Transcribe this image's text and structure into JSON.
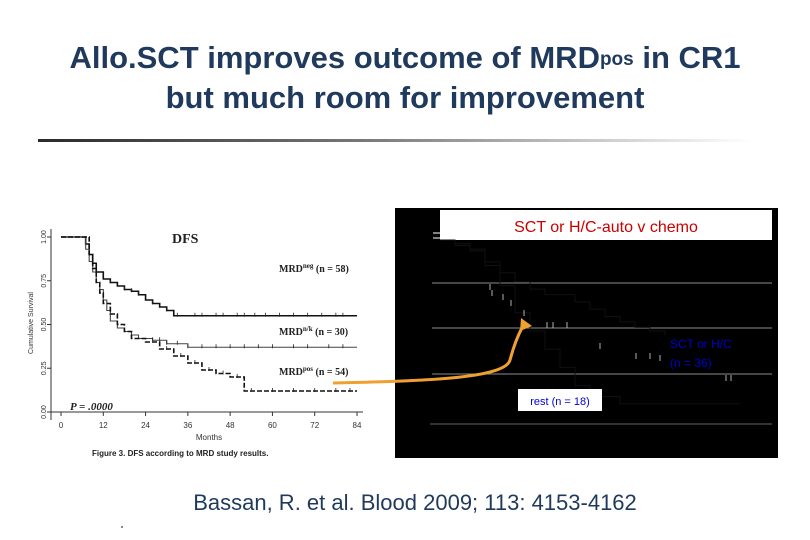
{
  "slide": {
    "title_main": "Allo.SCT improves outcome of MRD",
    "title_sup": "pos",
    "title_after": " in CR1",
    "title_line2": "but much room for improvement",
    "citation": "Bassan, R. et al. Blood 2009; 113: 4153-4162"
  },
  "colors": {
    "title": "#1f3a5c",
    "overlay_text": "#0000cc",
    "arrow": "#f0a030",
    "right_panel_bg": "#000000"
  },
  "chart_data": [
    {
      "type": "line",
      "title": "DFS",
      "xlabel": "Months",
      "ylabel": "Cumulative Survival",
      "xlim": [
        0,
        84
      ],
      "ylim": [
        0,
        1
      ],
      "x_ticks": [
        "0",
        "12",
        "24",
        "36",
        "48",
        "60",
        "72",
        "84"
      ],
      "y_ticks": [
        "0.00",
        "0.25",
        "0.50",
        "0.75",
        "1.00"
      ],
      "caption": "Figure 3. DFS according to MRD study results.",
      "p_value_label": "P = .0000",
      "series": [
        {
          "name": "MRDneg",
          "label_base": "MRD",
          "label_sup": "neg",
          "label_n": "(n = 58)",
          "points": [
            [
              0,
              1.0
            ],
            [
              6,
              1.0
            ],
            [
              7,
              0.96
            ],
            [
              8,
              0.9
            ],
            [
              9,
              0.85
            ],
            [
              10,
              0.8
            ],
            [
              12,
              0.76
            ],
            [
              14,
              0.74
            ],
            [
              16,
              0.72
            ],
            [
              18,
              0.7
            ],
            [
              20,
              0.69
            ],
            [
              22,
              0.67
            ],
            [
              24,
              0.64
            ],
            [
              26,
              0.62
            ],
            [
              28,
              0.6
            ],
            [
              30,
              0.58
            ],
            [
              32,
              0.55
            ],
            [
              40,
              0.55
            ],
            [
              45,
              0.55
            ],
            [
              84,
              0.55
            ]
          ]
        },
        {
          "name": "MRDn/k",
          "label_base": "MRD",
          "label_sup": "n/k",
          "label_n": "(n = 30)",
          "points": [
            [
              0,
              1.0
            ],
            [
              6,
              1.0
            ],
            [
              7,
              0.93
            ],
            [
              8,
              0.86
            ],
            [
              9,
              0.8
            ],
            [
              10,
              0.74
            ],
            [
              11,
              0.7
            ],
            [
              12,
              0.64
            ],
            [
              13,
              0.58
            ],
            [
              14,
              0.52
            ],
            [
              16,
              0.48
            ],
            [
              18,
              0.46
            ],
            [
              20,
              0.44
            ],
            [
              22,
              0.42
            ],
            [
              26,
              0.41
            ],
            [
              30,
              0.39
            ],
            [
              34,
              0.39
            ],
            [
              36,
              0.37
            ],
            [
              84,
              0.37
            ]
          ]
        },
        {
          "name": "MRDpos",
          "label_base": "MRD",
          "label_sup": "pos",
          "label_n": "(n = 54)",
          "points": [
            [
              0,
              1.0
            ],
            [
              7,
              1.0
            ],
            [
              8,
              0.9
            ],
            [
              9,
              0.82
            ],
            [
              10,
              0.74
            ],
            [
              11,
              0.68
            ],
            [
              12,
              0.62
            ],
            [
              14,
              0.56
            ],
            [
              16,
              0.5
            ],
            [
              18,
              0.46
            ],
            [
              20,
              0.42
            ],
            [
              24,
              0.4
            ],
            [
              28,
              0.36
            ],
            [
              32,
              0.32
            ],
            [
              36,
              0.28
            ],
            [
              40,
              0.24
            ],
            [
              44,
              0.22
            ],
            [
              48,
              0.2
            ],
            [
              52,
              0.12
            ],
            [
              84,
              0.12
            ]
          ]
        }
      ]
    },
    {
      "type": "line",
      "title": "SCT or H/C-auto v chemo",
      "series": [
        {
          "name": "SCT or H/C",
          "label_line1": "SCT or H/C",
          "label_line2": "(n = 36)",
          "points": [
            [
              0,
              1.0
            ],
            [
              1,
              0.97
            ],
            [
              2,
              0.94
            ],
            [
              3,
              0.88
            ],
            [
              4,
              0.82
            ],
            [
              5,
              0.77
            ],
            [
              6,
              0.73
            ],
            [
              7,
              0.7
            ],
            [
              9,
              0.66
            ],
            [
              10,
              0.62
            ],
            [
              11,
              0.58
            ],
            [
              12,
              0.55
            ],
            [
              13,
              0.52
            ],
            [
              14,
              0.5
            ],
            [
              15,
              0.48
            ],
            [
              17,
              0.46
            ],
            [
              20,
              0.46
            ]
          ]
        },
        {
          "name": "rest",
          "label_line1": "rest (n = 18)",
          "points": [
            [
              0,
              1.0
            ],
            [
              1,
              0.98
            ],
            [
              2,
              0.95
            ],
            [
              3,
              0.86
            ],
            [
              4,
              0.75
            ],
            [
              5,
              0.6
            ],
            [
              6,
              0.5
            ],
            [
              7,
              0.4
            ],
            [
              8,
              0.3
            ],
            [
              9,
              0.2
            ],
            [
              10,
              0.14
            ],
            [
              12,
              0.1
            ],
            [
              16,
              0.1
            ],
            [
              20,
              0.1
            ]
          ]
        }
      ]
    }
  ]
}
